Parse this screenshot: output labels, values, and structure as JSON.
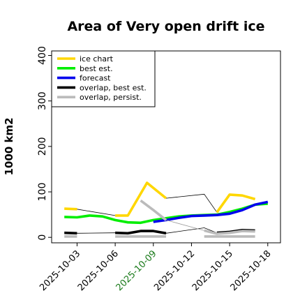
{
  "chart_data": {
    "type": "line",
    "title": "Area of Very open drift ice",
    "xlabel": "",
    "ylabel": "1000 km2",
    "ylim": [
      -12,
      410
    ],
    "yticks": [
      0,
      100,
      200,
      300,
      400
    ],
    "xlim": [
      "2025-10-01",
      "2025-10-19"
    ],
    "xticks": [
      "2025-10-03",
      "2025-10-06",
      "2025-10-09",
      "2025-10-12",
      "2025-10-15",
      "2025-10-18"
    ],
    "xtick_colors": [
      "#000000",
      "#000000",
      "#1a7a1a",
      "#000000",
      "#000000",
      "#000000"
    ],
    "grid": false,
    "legend_position": "top-left",
    "series": [
      {
        "name": "ice chart",
        "color": "#FFD700",
        "segments": [
          [
            [
              "2025-10-02",
              63
            ],
            [
              "2025-10-03",
              62
            ]
          ],
          [
            [
              "2025-10-06",
              48
            ],
            [
              "2025-10-07",
              48
            ],
            [
              "2025-10-08.5",
              120
            ],
            [
              "2025-10-10",
              86
            ]
          ],
          [
            [
              "2025-10-14",
              55
            ],
            [
              "2025-10-15",
              94
            ],
            [
              "2025-10-16",
              92
            ],
            [
              "2025-10-17",
              84
            ]
          ]
        ],
        "connectors": [
          [
            [
              "2025-10-03",
              62
            ],
            [
              "2025-10-06",
              48
            ]
          ],
          [
            [
              "2025-10-10",
              86
            ],
            [
              "2025-10-13",
              95
            ],
            [
              "2025-10-14",
              55
            ]
          ]
        ]
      },
      {
        "name": "best est.",
        "color": "#00EE00",
        "segments": [
          [
            [
              "2025-10-02",
              45
            ],
            [
              "2025-10-03",
              44
            ],
            [
              "2025-10-04",
              48
            ],
            [
              "2025-10-05",
              46
            ],
            [
              "2025-10-06",
              38
            ],
            [
              "2025-10-07",
              33
            ],
            [
              "2025-10-08",
              32
            ],
            [
              "2025-10-09",
              38
            ],
            [
              "2025-10-10",
              42
            ],
            [
              "2025-10-11",
              46
            ],
            [
              "2025-10-12",
              48
            ],
            [
              "2025-10-13",
              49
            ],
            [
              "2025-10-14",
              50
            ],
            [
              "2025-10-15",
              56
            ],
            [
              "2025-10-16",
              63
            ],
            [
              "2025-10-17",
              72
            ],
            [
              "2025-10-18",
              74
            ]
          ]
        ],
        "connectors": []
      },
      {
        "name": "forecast",
        "color": "#0000EE",
        "segments": [
          [
            [
              "2025-10-09",
              34
            ],
            [
              "2025-10-10",
              38
            ],
            [
              "2025-10-11",
              43
            ],
            [
              "2025-10-12",
              47
            ],
            [
              "2025-10-13",
              48
            ],
            [
              "2025-10-14",
              49
            ],
            [
              "2025-10-15",
              52
            ],
            [
              "2025-10-16",
              60
            ],
            [
              "2025-10-17",
              72
            ],
            [
              "2025-10-18",
              78
            ]
          ]
        ],
        "connectors": []
      },
      {
        "name": "overlap, best est.",
        "color": "#000000",
        "segments": [
          [
            [
              "2025-10-02",
              10
            ],
            [
              "2025-10-03",
              9
            ]
          ],
          [
            [
              "2025-10-06",
              10
            ],
            [
              "2025-10-07",
              9
            ],
            [
              "2025-10-08",
              14
            ],
            [
              "2025-10-09",
              14
            ],
            [
              "2025-10-10",
              9
            ]
          ],
          [
            [
              "2025-10-14",
              10
            ],
            [
              "2025-10-15",
              12
            ],
            [
              "2025-10-16",
              16
            ],
            [
              "2025-10-17",
              15
            ]
          ]
        ],
        "connectors": [
          [
            [
              "2025-10-03",
              9
            ],
            [
              "2025-10-06",
              10
            ]
          ],
          [
            [
              "2025-10-10",
              9
            ],
            [
              "2025-10-13",
              21
            ],
            [
              "2025-10-14",
              10
            ]
          ]
        ]
      },
      {
        "name": "overlap, persist.",
        "color": "#BBBBBB",
        "segments": [
          [
            [
              "2025-10-02",
              2
            ],
            [
              "2025-10-03",
              2
            ]
          ],
          [
            [
              "2025-10-08",
              81
            ],
            [
              "2025-10-09",
              60
            ],
            [
              "2025-10-10",
              38
            ]
          ],
          [
            [
              "2025-10-13",
              15
            ],
            [
              "2025-10-14",
              8
            ],
            [
              "2025-10-15",
              10
            ],
            [
              "2025-10-16",
              14
            ],
            [
              "2025-10-17",
              13
            ]
          ],
          [
            [
              "2025-10-06",
              2
            ],
            [
              "2025-10-10",
              2
            ]
          ],
          [
            [
              "2025-10-13",
              2
            ],
            [
              "2025-10-17",
              2
            ]
          ]
        ],
        "connectors": [
          [
            [
              "2025-10-10",
              38
            ],
            [
              "2025-10-13",
              15
            ]
          ]
        ]
      }
    ]
  }
}
